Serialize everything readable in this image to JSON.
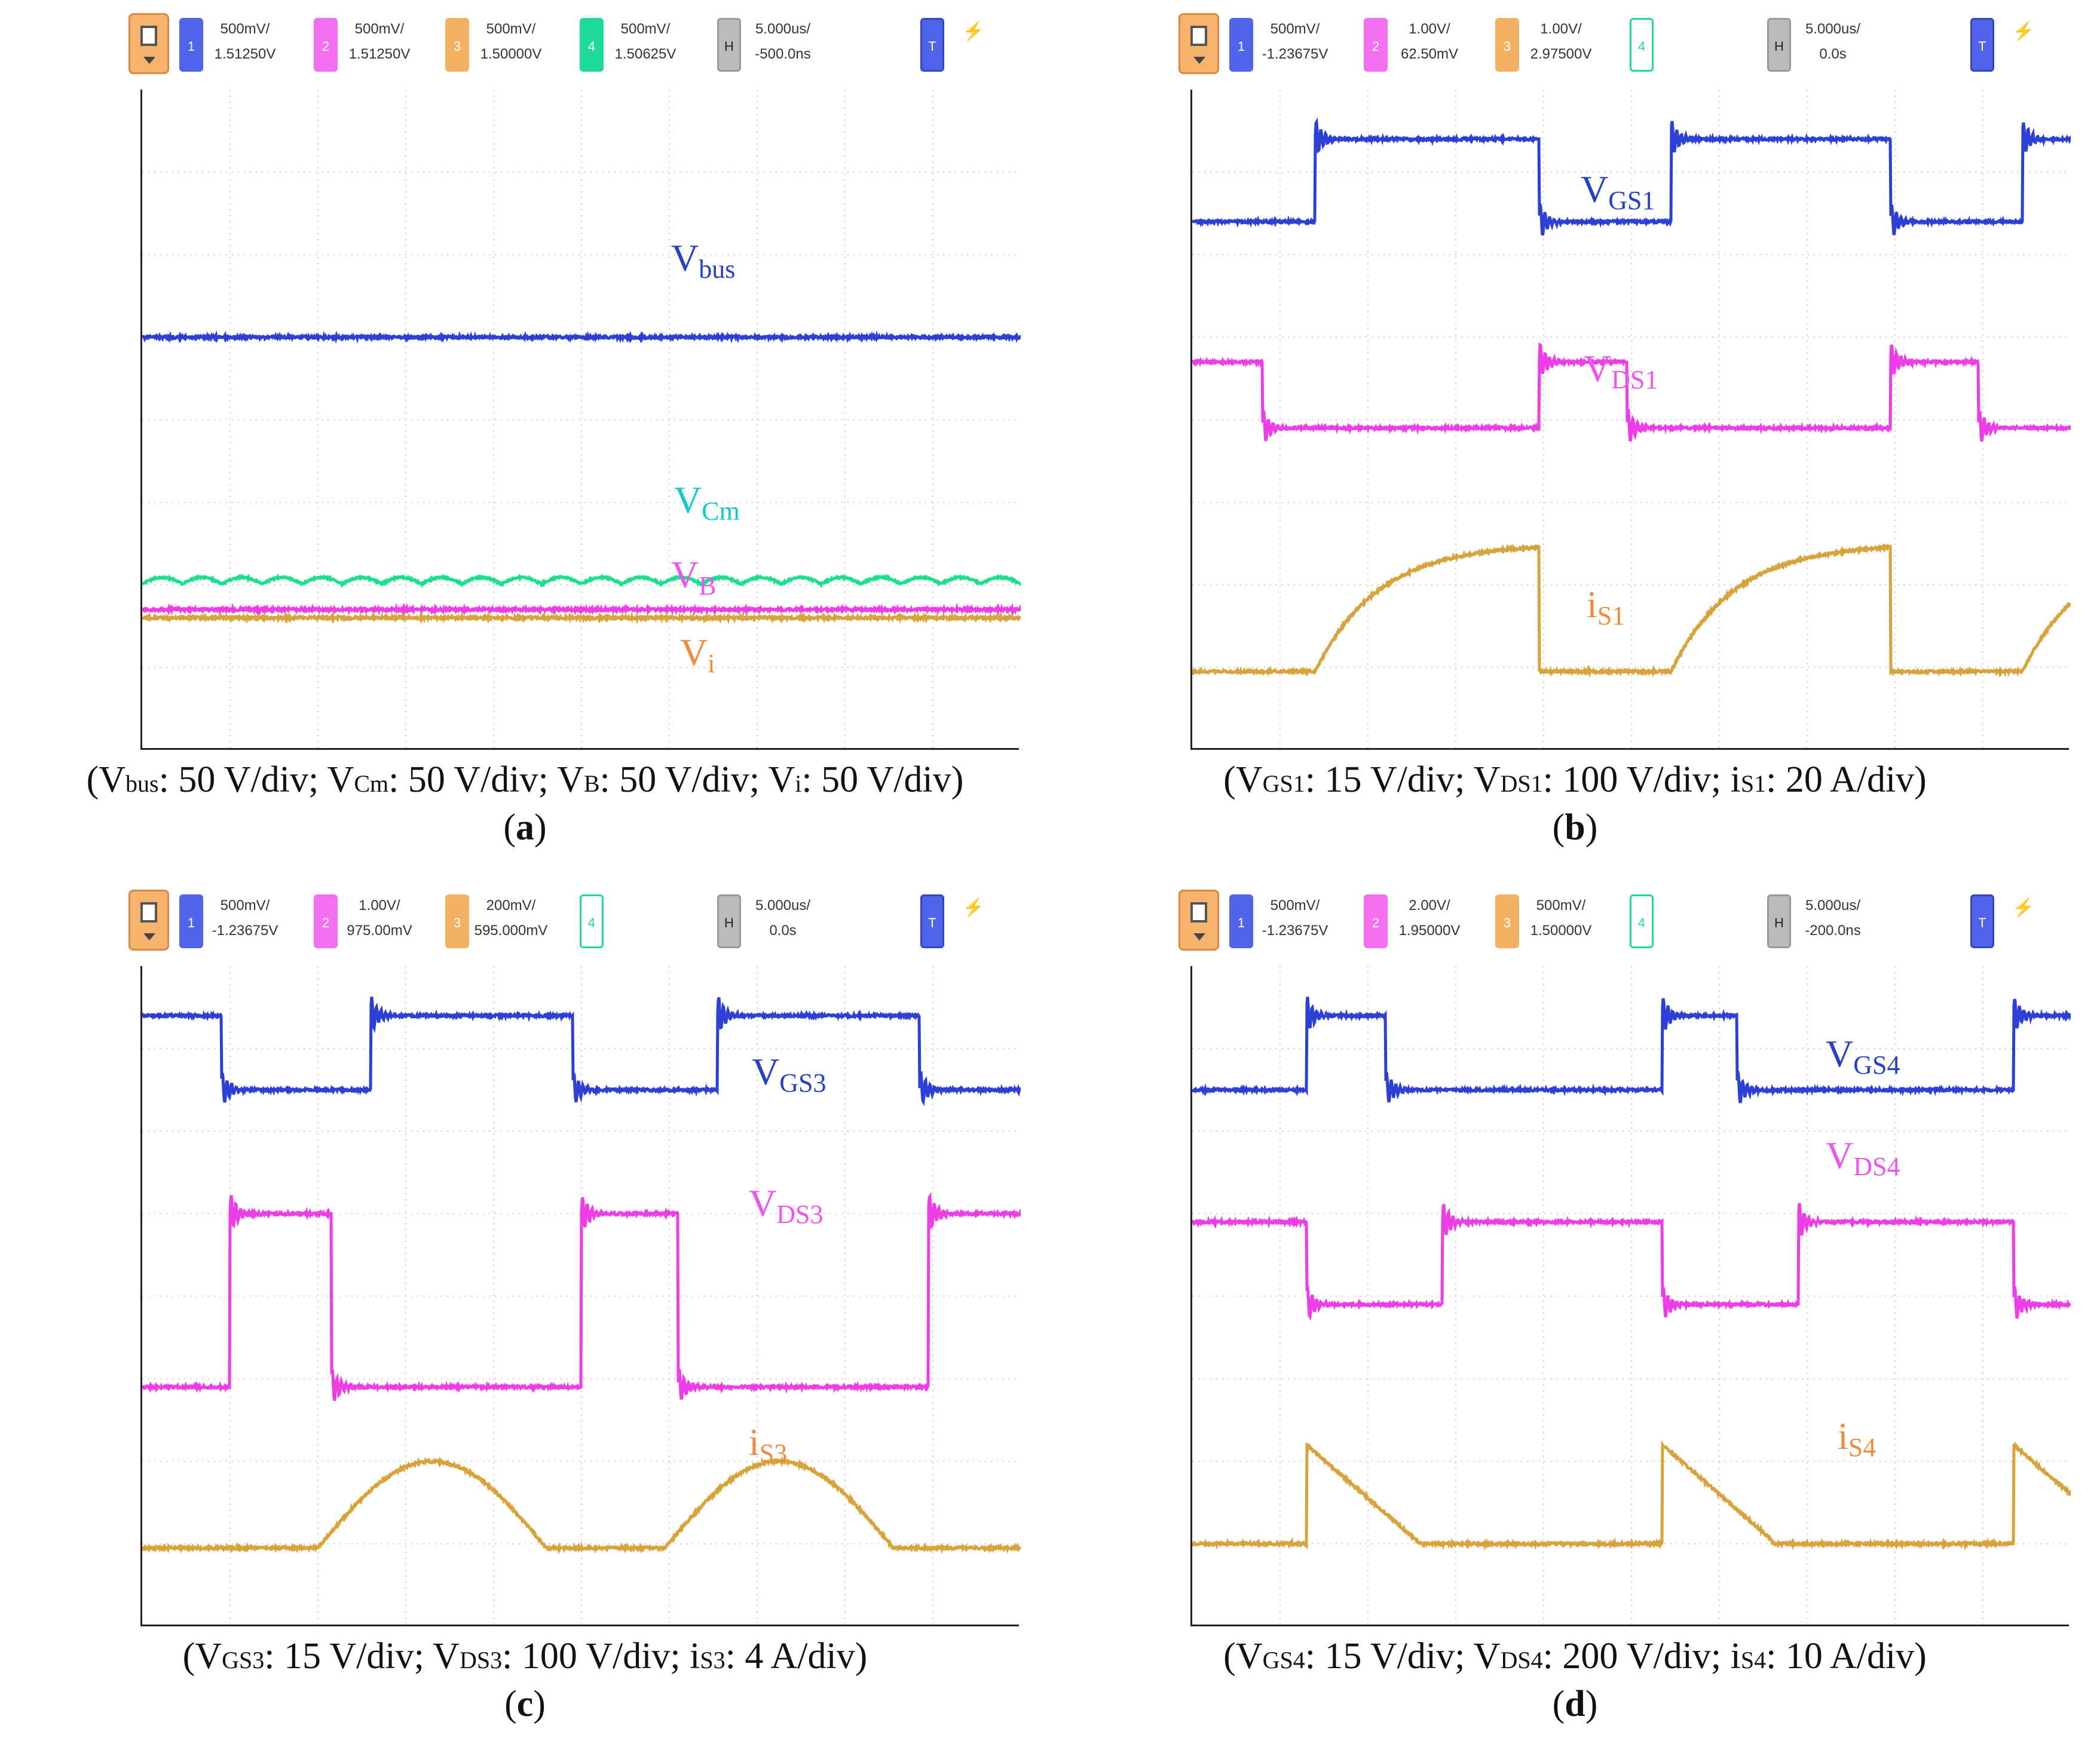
{
  "panels": [
    {
      "id": "a",
      "toolbar": {
        "channels": [
          {
            "num": "1",
            "scale": "500mV/",
            "offset": "1.51250V",
            "color": "#4f64e8"
          },
          {
            "num": "2",
            "scale": "500mV/",
            "offset": "1.51250V",
            "color": "#f36ff0"
          },
          {
            "num": "3",
            "scale": "500mV/",
            "offset": "1.50000V",
            "color": "#f5b162"
          },
          {
            "num": "4",
            "scale": "500mV/",
            "offset": "1.50625V",
            "color": "#1fd99b"
          }
        ],
        "h_label": "H",
        "timebase": "5.000us/",
        "delay": "-500.0ns",
        "trigger_label": "T"
      },
      "labels": [
        {
          "main": "V",
          "sub": "bus",
          "color": "#2440c8"
        },
        {
          "main": "V",
          "sub": "Cm",
          "color": "#14c8c8"
        },
        {
          "main": "V",
          "sub": "B",
          "color": "#ee55ee"
        },
        {
          "main": "V",
          "sub": "i",
          "color": "#f08a3c"
        }
      ],
      "caption": [
        {
          "t": "(V"
        },
        {
          "s": "bus"
        },
        {
          "t": ": 50 V/div; V"
        },
        {
          "s": "Cm"
        },
        {
          "t": ": 50 V/div; V"
        },
        {
          "s": "B"
        },
        {
          "t": ": 50 V/div; V"
        },
        {
          "s": "i"
        },
        {
          "t": ": 50 V/div)"
        }
      ],
      "sublabel": "a"
    },
    {
      "id": "b",
      "toolbar": {
        "channels": [
          {
            "num": "1",
            "scale": "500mV/",
            "offset": "-1.23675V",
            "color": "#4f64e8"
          },
          {
            "num": "2",
            "scale": "1.00V/",
            "offset": "62.50mV",
            "color": "#f36ff0"
          },
          {
            "num": "3",
            "scale": "1.00V/",
            "offset": "2.97500V",
            "color": "#f5b162"
          },
          {
            "num": "4",
            "scale": "",
            "offset": "",
            "color": "#1fd99b"
          }
        ],
        "h_label": "H",
        "timebase": "5.000us/",
        "delay": "0.0s",
        "trigger_label": "T"
      },
      "labels": [
        {
          "main": "V",
          "sub": "GS1",
          "color": "#2440c8"
        },
        {
          "main": "V",
          "sub": "DS1",
          "color": "#ee55ee"
        },
        {
          "main": "i",
          "sub": "S1",
          "color": "#f08a3c"
        }
      ],
      "caption": [
        {
          "t": "(V"
        },
        {
          "s": "GS1"
        },
        {
          "t": ": 15 V/div; V"
        },
        {
          "s": "DS1"
        },
        {
          "t": ": 100 V/div; i"
        },
        {
          "s": "S1"
        },
        {
          "t": ": 20 A/div)"
        }
      ],
      "sublabel": "b"
    },
    {
      "id": "c",
      "toolbar": {
        "channels": [
          {
            "num": "1",
            "scale": "500mV/",
            "offset": "-1.23675V",
            "color": "#4f64e8"
          },
          {
            "num": "2",
            "scale": "1.00V/",
            "offset": "975.00mV",
            "color": "#f36ff0"
          },
          {
            "num": "3",
            "scale": "200mV/",
            "offset": "595.000mV",
            "color": "#f5b162"
          },
          {
            "num": "4",
            "scale": "",
            "offset": "",
            "color": "#1fd99b"
          }
        ],
        "h_label": "H",
        "timebase": "5.000us/",
        "delay": "0.0s",
        "trigger_label": "T"
      },
      "labels": [
        {
          "main": "V",
          "sub": "GS3",
          "color": "#2440c8"
        },
        {
          "main": "V",
          "sub": "DS3",
          "color": "#ee55ee"
        },
        {
          "main": "i",
          "sub": "S3",
          "color": "#f08a3c"
        }
      ],
      "caption": [
        {
          "t": "(V"
        },
        {
          "s": "GS3"
        },
        {
          "t": ": 15 V/div; V"
        },
        {
          "s": "DS3"
        },
        {
          "t": ": 100 V/div; i"
        },
        {
          "s": "S3"
        },
        {
          "t": ": 4 A/div)"
        }
      ],
      "sublabel": "c"
    },
    {
      "id": "d",
      "toolbar": {
        "channels": [
          {
            "num": "1",
            "scale": "500mV/",
            "offset": "-1.23675V",
            "color": "#4f64e8"
          },
          {
            "num": "2",
            "scale": "2.00V/",
            "offset": "1.95000V",
            "color": "#f36ff0"
          },
          {
            "num": "3",
            "scale": "500mV/",
            "offset": "1.50000V",
            "color": "#f5b162"
          },
          {
            "num": "4",
            "scale": "",
            "offset": "",
            "color": "#1fd99b"
          }
        ],
        "h_label": "H",
        "timebase": "5.000us/",
        "delay": "-200.0ns",
        "trigger_label": "T"
      },
      "labels": [
        {
          "main": "V",
          "sub": "GS4",
          "color": "#2440c8"
        },
        {
          "main": "V",
          "sub": "DS4",
          "color": "#ee55ee"
        },
        {
          "main": "i",
          "sub": "S4",
          "color": "#f08a3c"
        }
      ],
      "caption": [
        {
          "t": "(V"
        },
        {
          "s": "GS4"
        },
        {
          "t": ": 15 V/div; V"
        },
        {
          "s": "DS4"
        },
        {
          "t": ": 200 V/div; i"
        },
        {
          "s": "S4"
        },
        {
          "t": ": 10 A/div)"
        }
      ],
      "sublabel": "d"
    }
  ],
  "chart_data": [
    {
      "type": "line",
      "panel": "a",
      "grid": true,
      "divisions_x": 10,
      "divisions_y": 8,
      "series": [
        {
          "name": "Vbus",
          "color": "#2c3fd6",
          "kind": "flat",
          "level_div": 5.0
        },
        {
          "name": "VCm",
          "color": "#19e08c",
          "kind": "ripple",
          "level_div": 2.05
        },
        {
          "name": "VB",
          "color": "#ee3ce6",
          "kind": "flat",
          "level_div": 1.7
        },
        {
          "name": "Vi",
          "color": "#d7a33a",
          "kind": "flat",
          "level_div": 1.6
        }
      ]
    },
    {
      "type": "line",
      "panel": "b",
      "grid": true,
      "divisions_x": 10,
      "divisions_y": 8,
      "series": [
        {
          "name": "VGS1",
          "color": "#2c3fd6",
          "kind": "pulse",
          "low_div": 6.4,
          "high_div": 7.4,
          "edges_rise": [
            1.4,
            5.45,
            9.45
          ],
          "edges_fall": [
            3.95,
            7.95
          ]
        },
        {
          "name": "VDS1",
          "color": "#ee3ce6",
          "kind": "pulse",
          "low_div": 3.9,
          "high_div": 4.7,
          "edges_rise": [
            3.95,
            7.95
          ],
          "edges_fall": [
            0.8,
            4.95,
            8.95
          ]
        },
        {
          "name": "iS1",
          "color": "#d7a33a",
          "kind": "charge",
          "low_div": 0.95,
          "high_div": 2.5,
          "edges_rise": [
            1.4,
            5.45,
            9.45
          ],
          "edges_fall": [
            3.95,
            7.95
          ]
        }
      ]
    },
    {
      "type": "line",
      "panel": "c",
      "grid": true,
      "divisions_x": 10,
      "divisions_y": 8,
      "series": [
        {
          "name": "VGS3",
          "color": "#2c3fd6",
          "kind": "pulse",
          "low_div": 6.5,
          "high_div": 7.4,
          "edges_rise": [
            2.6,
            6.55
          ],
          "edges_fall": [
            0.9,
            4.9,
            8.85
          ]
        },
        {
          "name": "VDS3",
          "color": "#ee3ce6",
          "kind": "pulse",
          "low_div": 2.9,
          "high_div": 5.0,
          "edges_rise": [
            1.0,
            5.0,
            8.95
          ],
          "edges_fall": [
            2.15,
            6.1
          ]
        },
        {
          "name": "iS3",
          "color": "#d7a33a",
          "kind": "arc",
          "low_div": 0.95,
          "high_div": 2.0,
          "peaks": [
            3.3,
            7.25
          ]
        }
      ]
    },
    {
      "type": "line",
      "panel": "d",
      "grid": true,
      "divisions_x": 10,
      "divisions_y": 8,
      "series": [
        {
          "name": "VGS4",
          "color": "#2c3fd6",
          "kind": "pulse",
          "low_div": 6.5,
          "high_div": 7.4,
          "edges_rise": [
            1.3,
            5.35,
            9.35
          ],
          "edges_fall": [
            2.2,
            6.2
          ]
        },
        {
          "name": "VDS4",
          "color": "#ee3ce6",
          "kind": "pulse",
          "low_div": 3.9,
          "high_div": 4.9,
          "edges_rise": [
            2.85,
            6.9
          ],
          "edges_fall": [
            1.3,
            5.35,
            9.35
          ]
        },
        {
          "name": "iS4",
          "color": "#d7a33a",
          "kind": "ramp",
          "low_div": 1.0,
          "high_div": 2.2,
          "edges_rise": [
            1.3,
            5.35,
            9.35
          ],
          "edges_fall": [
            2.6,
            6.6
          ]
        }
      ]
    }
  ]
}
